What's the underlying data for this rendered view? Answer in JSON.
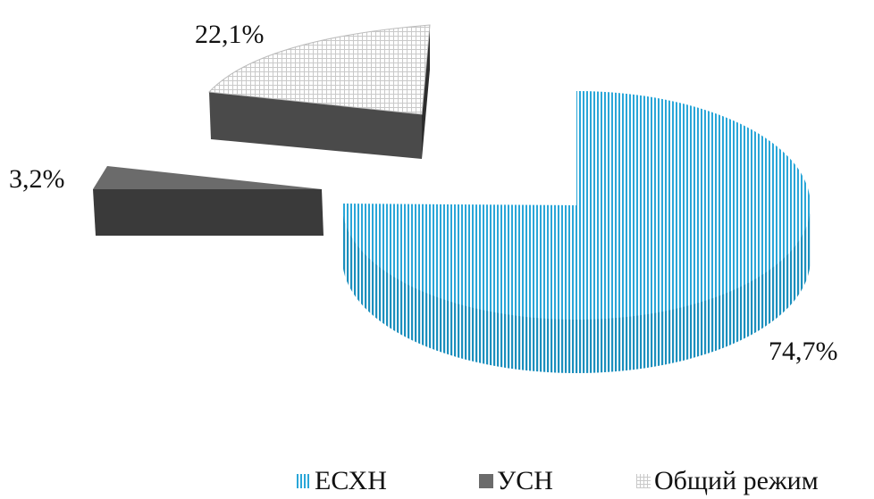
{
  "chart_data": {
    "type": "pie",
    "categories": [
      "ЕСХН",
      "УСН",
      "Общий режим"
    ],
    "values": [
      74.7,
      3.2,
      22.1
    ],
    "data_labels": [
      "74,7%",
      "3,2%",
      "22,1%"
    ],
    "title": "",
    "legend_position": "bottom",
    "exploded": true,
    "three_d": true
  },
  "legend": {
    "items": [
      "ЕСХН",
      "УСН",
      "Общий режим"
    ]
  },
  "colors": {
    "esxn": "#2aa6d8",
    "usn": "#6b6b6b",
    "usn_side": "#3a3a3a",
    "obsh_grid": "#c9c9c9",
    "obsh_side": "#4a4a4a"
  }
}
